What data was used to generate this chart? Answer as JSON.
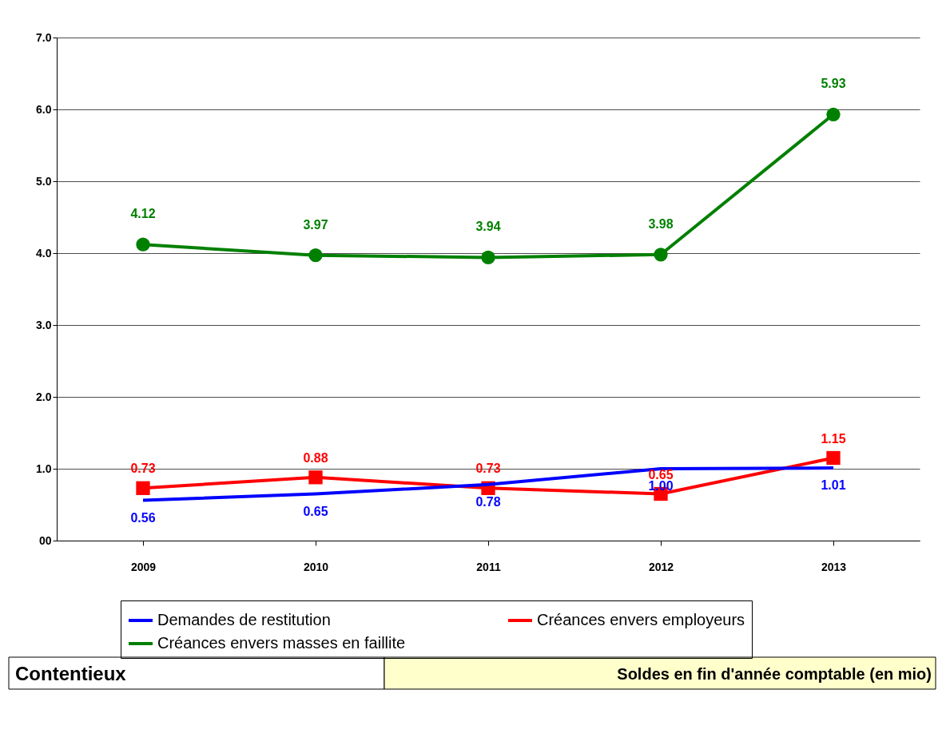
{
  "chart_data": {
    "type": "line",
    "title": "Contentieux",
    "subtitle": "Soldes en fin d'année comptable (en mio)",
    "categories": [
      "2009",
      "2010",
      "2011",
      "2012",
      "2013"
    ],
    "series": [
      {
        "name": "Demandes de restitution",
        "color": "#0000ff",
        "marker": "none",
        "values": [
          0.56,
          0.65,
          0.78,
          1.0,
          1.01
        ],
        "value_labels": [
          "0.56",
          "0.65",
          "0.78",
          "1.00",
          "1.01"
        ]
      },
      {
        "name": "Créances envers employeurs",
        "color": "#ff0000",
        "marker": "square",
        "values": [
          0.73,
          0.88,
          0.73,
          0.65,
          1.15
        ],
        "value_labels": [
          "0.73",
          "0.88",
          "0.73",
          "0.65",
          "1.15"
        ]
      },
      {
        "name": "Créances envers masses en faillite",
        "color": "#008000",
        "marker": "circle",
        "values": [
          4.12,
          3.97,
          3.94,
          3.98,
          5.93
        ],
        "value_labels": [
          "4.12",
          "3.97",
          "3.94",
          "3.98",
          "5.93"
        ]
      }
    ],
    "ylim": [
      0,
      7
    ],
    "yticks": [
      {
        "value": 0,
        "label": "00"
      },
      {
        "value": 1,
        "label": "1.0"
      },
      {
        "value": 2,
        "label": "2.0"
      },
      {
        "value": 3,
        "label": "3.0"
      },
      {
        "value": 4,
        "label": "4.0"
      },
      {
        "value": 5,
        "label": "5.0"
      },
      {
        "value": 6,
        "label": "6.0"
      },
      {
        "value": 7,
        "label": "7.0"
      }
    ],
    "grid": "y",
    "legend": "bottom"
  }
}
